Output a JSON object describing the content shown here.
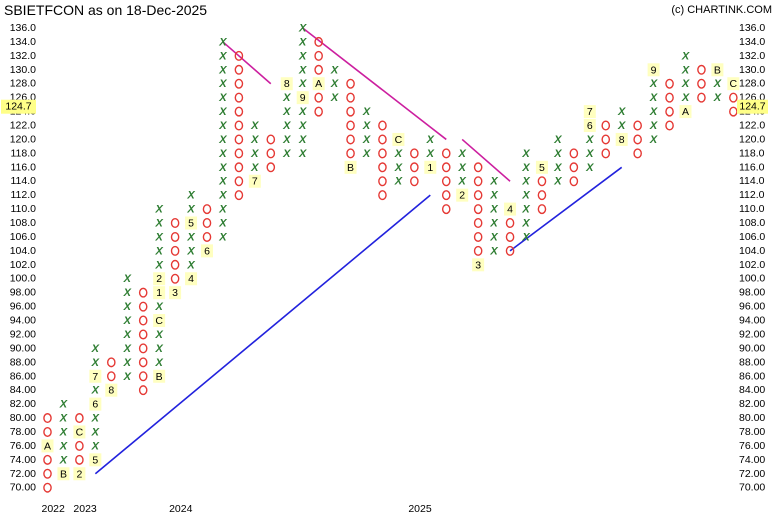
{
  "header": {
    "title": "SBIETFCON as on 18-Dec-2025",
    "credit": "(c) CHARTINK.COM"
  },
  "chart_data": {
    "type": "point-and-figure",
    "box_size": 2,
    "ylim": [
      70,
      136
    ],
    "y_tick_labels": [
      "136.0",
      "134.0",
      "132.0",
      "130.0",
      "128.0",
      "126.0",
      "124.0",
      "122.0",
      "120.0",
      "118.0",
      "116.0",
      "114.0",
      "112.0",
      "110.0",
      "108.0",
      "106.0",
      "104.0",
      "102.0",
      "100.0",
      "98.00",
      "96.00",
      "94.00",
      "92.00",
      "90.00",
      "88.00",
      "86.00",
      "84.00",
      "82.00",
      "80.00",
      "78.00",
      "76.00",
      "74.00",
      "72.00",
      "70.00"
    ],
    "last_price_label": "124.7",
    "x_tick_labels": [
      {
        "label": "2022",
        "column": 0
      },
      {
        "label": "2023",
        "column": 2
      },
      {
        "label": "2024",
        "column": 8
      },
      {
        "label": "2025",
        "column": 23
      }
    ],
    "columns": [
      {
        "type": "O",
        "top": 80,
        "bottom": 70,
        "markers": {
          "76": "A"
        }
      },
      {
        "type": "X",
        "top": 82,
        "bottom": 72,
        "markers": {
          "72": "B"
        }
      },
      {
        "type": "O",
        "top": 80,
        "bottom": 72,
        "markers": {
          "72": "2",
          "78": "C"
        }
      },
      {
        "type": "X",
        "top": 90,
        "bottom": 74,
        "markers": {
          "74": "5",
          "82": "6",
          "86": "7"
        }
      },
      {
        "type": "O",
        "top": 88,
        "bottom": 84,
        "markers": {
          "84": "8"
        }
      },
      {
        "type": "X",
        "top": 100,
        "bottom": 86,
        "markers": {}
      },
      {
        "type": "O",
        "top": 98,
        "bottom": 84,
        "markers": {}
      },
      {
        "type": "X",
        "top": 110,
        "bottom": 86,
        "markers": {
          "86": "B",
          "94": "C",
          "98": "1",
          "100": "2"
        }
      },
      {
        "type": "O",
        "top": 108,
        "bottom": 98,
        "markers": {
          "98": "3"
        }
      },
      {
        "type": "X",
        "top": 112,
        "bottom": 100,
        "markers": {
          "100": "4",
          "108": "5"
        }
      },
      {
        "type": "O",
        "top": 110,
        "bottom": 104,
        "markers": {
          "104": "6"
        }
      },
      {
        "type": "X",
        "top": 134,
        "bottom": 106,
        "markers": {}
      },
      {
        "type": "O",
        "top": 132,
        "bottom": 112,
        "markers": {}
      },
      {
        "type": "X",
        "top": 122,
        "bottom": 114,
        "markers": {
          "114": "7"
        }
      },
      {
        "type": "O",
        "top": 120,
        "bottom": 116,
        "markers": {}
      },
      {
        "type": "X",
        "top": 128,
        "bottom": 118,
        "markers": {
          "128": "8"
        }
      },
      {
        "type": "X",
        "top": 136,
        "bottom": 118,
        "markers": {
          "126": "9"
        }
      },
      {
        "type": "O",
        "top": 134,
        "bottom": 124,
        "markers": {
          "128": "A"
        }
      },
      {
        "type": "X",
        "top": 130,
        "bottom": 126,
        "markers": {}
      },
      {
        "type": "O",
        "top": 128,
        "bottom": 116,
        "markers": {
          "116": "B"
        }
      },
      {
        "type": "X",
        "top": 124,
        "bottom": 118,
        "markers": {}
      },
      {
        "type": "O",
        "top": 122,
        "bottom": 112,
        "markers": {}
      },
      {
        "type": "X",
        "top": 120,
        "bottom": 114,
        "markers": {
          "120": "C"
        }
      },
      {
        "type": "O",
        "top": 118,
        "bottom": 114,
        "markers": {}
      },
      {
        "type": "X",
        "top": 120,
        "bottom": 116,
        "markers": {
          "116": "1"
        }
      },
      {
        "type": "O",
        "top": 118,
        "bottom": 110,
        "markers": {}
      },
      {
        "type": "X",
        "top": 118,
        "bottom": 112,
        "markers": {
          "112": "2"
        }
      },
      {
        "type": "O",
        "top": 116,
        "bottom": 102,
        "markers": {
          "102": "3"
        }
      },
      {
        "type": "X",
        "top": 114,
        "bottom": 104,
        "markers": {}
      },
      {
        "type": "O",
        "top": 110,
        "bottom": 104,
        "markers": {
          "110": "4"
        }
      },
      {
        "type": "X",
        "top": 118,
        "bottom": 106,
        "markers": {}
      },
      {
        "type": "O",
        "top": 116,
        "bottom": 110,
        "markers": {
          "116": "5"
        }
      },
      {
        "type": "X",
        "top": 120,
        "bottom": 114,
        "markers": {}
      },
      {
        "type": "O",
        "top": 118,
        "bottom": 114,
        "markers": {}
      },
      {
        "type": "X",
        "top": 124,
        "bottom": 116,
        "markers": {
          "122": "6",
          "124": "7"
        }
      },
      {
        "type": "O",
        "top": 122,
        "bottom": 118,
        "markers": {}
      },
      {
        "type": "X",
        "top": 124,
        "bottom": 120,
        "markers": {
          "120": "8"
        }
      },
      {
        "type": "O",
        "top": 122,
        "bottom": 118,
        "markers": {}
      },
      {
        "type": "X",
        "top": 130,
        "bottom": 120,
        "markers": {
          "130": "9"
        }
      },
      {
        "type": "O",
        "top": 128,
        "bottom": 122,
        "markers": {}
      },
      {
        "type": "X",
        "top": 132,
        "bottom": 124,
        "markers": {
          "124": "A"
        }
      },
      {
        "type": "O",
        "top": 130,
        "bottom": 126,
        "markers": {}
      },
      {
        "type": "X",
        "top": 130,
        "bottom": 126,
        "markers": {
          "130": "B"
        }
      },
      {
        "type": "O",
        "top": 128,
        "bottom": 124,
        "markers": {
          "128": "C"
        }
      }
    ],
    "trendlines": [
      {
        "kind": "support",
        "from": {
          "column": 3,
          "price": 72
        },
        "to": {
          "column": 24,
          "price": 112
        }
      },
      {
        "kind": "support",
        "from": {
          "column": 29,
          "price": 104
        },
        "to": {
          "column": 36,
          "price": 116
        }
      },
      {
        "kind": "resistance",
        "from": {
          "column": 11,
          "price": 134
        },
        "to": {
          "column": 14,
          "price": 128
        }
      },
      {
        "kind": "resistance",
        "from": {
          "column": 16,
          "price": 136
        },
        "to": {
          "column": 25,
          "price": 120
        }
      },
      {
        "kind": "resistance",
        "from": {
          "column": 26,
          "price": 120
        },
        "to": {
          "column": 29,
          "price": 114
        }
      }
    ],
    "colors": {
      "x": "#2e7d32",
      "o": "#e53935",
      "marker_bg": "#ffffc0",
      "support": "#2222dd",
      "resistance": "#cc1f9f",
      "last_price_bg": "#ffff88"
    },
    "grid": false,
    "legend": "none"
  }
}
